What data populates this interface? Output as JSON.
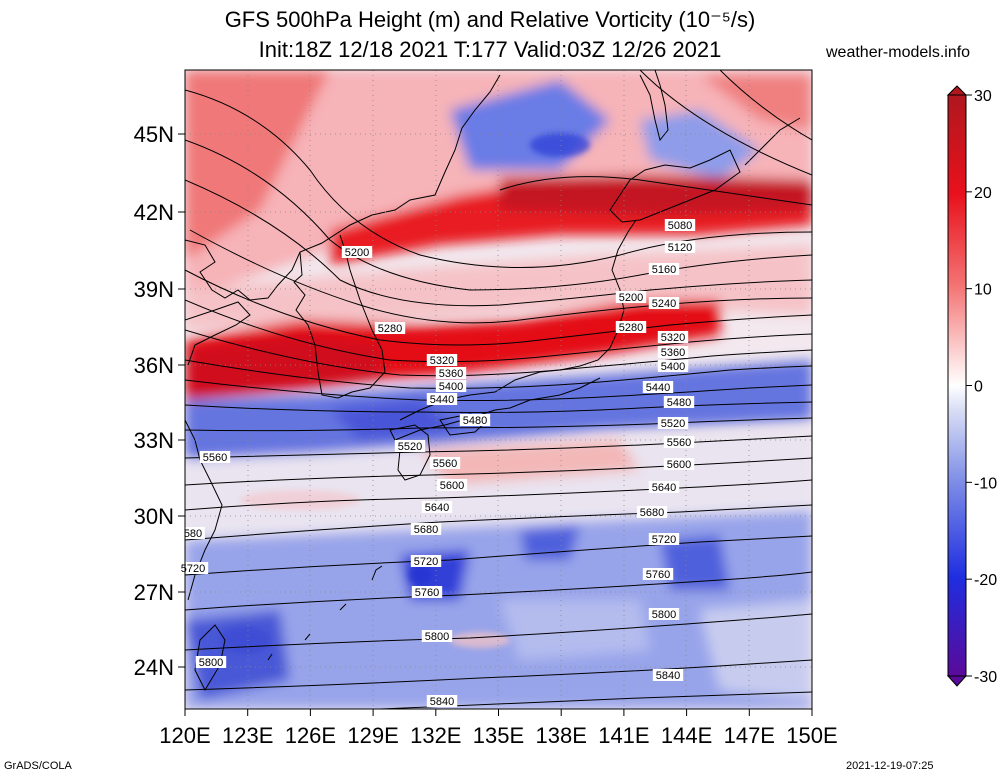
{
  "title_line1": "GFS 500hPa Height (m) and Relative Vorticity (10⁻⁵/s)",
  "title_line2": "Init:18Z 12/18 2021 T:177 Valid:03Z 12/26 2021",
  "site": "weather-models.info",
  "footer_left": "GrADS/COLA",
  "footer_right": "2021-12-19-07:25",
  "map": {
    "lon_range": [
      120,
      150
    ],
    "lat_range": [
      22.5,
      47.5
    ],
    "lat_ticks": [
      "24N",
      "27N",
      "30N",
      "33N",
      "36N",
      "39N",
      "42N",
      "45N"
    ],
    "lon_ticks": [
      "120E",
      "123E",
      "126E",
      "129E",
      "132E",
      "135E",
      "138E",
      "141E",
      "144E",
      "147E",
      "150E"
    ],
    "contour_labels": [
      "5080",
      "5120",
      "5160",
      "5200",
      "5200",
      "5240",
      "5280",
      "5280",
      "5320",
      "5320",
      "5360",
      "5360",
      "5400",
      "5400",
      "5440",
      "5440",
      "5480",
      "5480",
      "5520",
      "5520",
      "5560",
      "5560",
      "5560",
      "5600",
      "5600",
      "5640",
      "5640",
      "5680",
      "5680",
      "580",
      "5720",
      "5720",
      "5720",
      "5760",
      "5760",
      "5800",
      "5800",
      "5800",
      "5840",
      "5840"
    ]
  },
  "colorbar": {
    "labels": [
      "30",
      "20",
      "10",
      "0",
      "-10",
      "-20",
      "-30"
    ],
    "colors": [
      "#b0171f",
      "#e8111b",
      "#f45a5a",
      "#f9a3a3",
      "#fde0e0",
      "#ffffff",
      "#dadff5",
      "#9fa9ec",
      "#5b6ee3",
      "#1e2ee0",
      "#2b0fa8",
      "#5a0a9a"
    ]
  }
}
